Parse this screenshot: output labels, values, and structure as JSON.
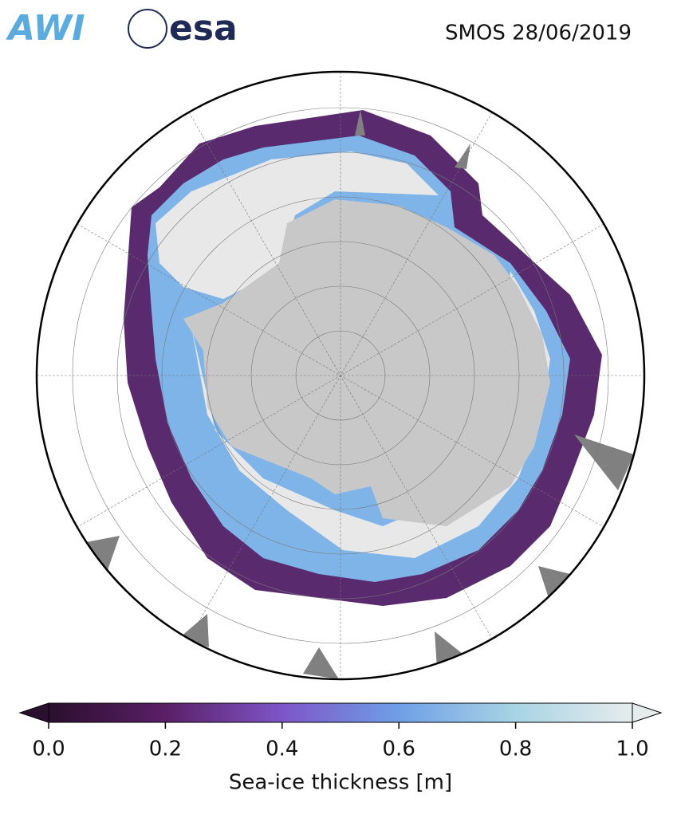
{
  "header": {
    "title": "SMOS 28/06/2019",
    "logos": [
      "AWI",
      "esa"
    ]
  },
  "colorbar": {
    "label": "Sea-ice thickness [m]",
    "lim": [
      0,
      1
    ],
    "ticks": [
      {
        "value": 0,
        "label": "0.0"
      },
      0.2,
      0.4,
      0.6,
      0.8,
      {
        "value": 1,
        "label": "1.0"
      }
    ],
    "colormap": [
      "#2a0f2e",
      "#5a1f66",
      "#7e55c8",
      "#6f9fe6",
      "#a8d4e4",
      "#e6ecec"
    ]
  }
}
